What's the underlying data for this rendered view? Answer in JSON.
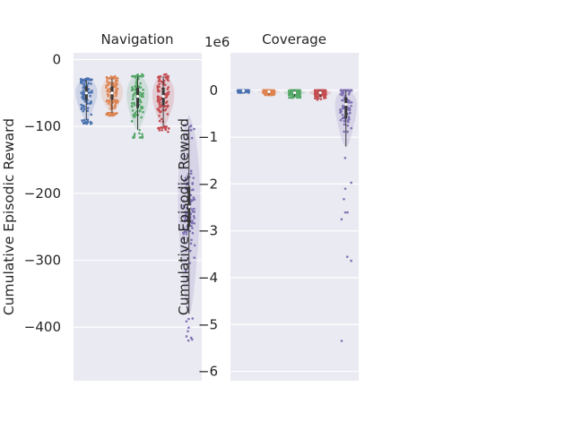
{
  "chart_data": [
    {
      "type": "violin-strip",
      "title": "Navigation",
      "ylabel": "Cumulative Episodic Reward",
      "xlabel": "",
      "ylim": [
        -480,
        10
      ],
      "yticks": [
        0,
        -100,
        -200,
        -300,
        -400
      ],
      "ytick_labels": [
        "0",
        "−100",
        "−200",
        "−300",
        "−400"
      ],
      "grid": true,
      "series": [
        {
          "color": "#4c72b0",
          "median": -50,
          "q1": -60,
          "q3": -40,
          "whisker_low": -90,
          "whisker_high": -30,
          "min": -96,
          "max": -28
        },
        {
          "color": "#dd8452",
          "median": -50,
          "q1": -60,
          "q3": -40,
          "whisker_low": -80,
          "whisker_high": -28,
          "min": -84,
          "max": -25
        },
        {
          "color": "#55a868",
          "median": -55,
          "q1": -72,
          "q3": -42,
          "whisker_low": -105,
          "whisker_high": -25,
          "min": -117,
          "max": -22
        },
        {
          "color": "#c44e52",
          "median": -55,
          "q1": -68,
          "q3": -42,
          "whisker_low": -100,
          "whisker_high": -25,
          "min": -108,
          "max": -22
        },
        {
          "color": "#8172b3",
          "median": -220,
          "q1": -250,
          "q3": -190,
          "whisker_low": -380,
          "whisker_high": -100,
          "min": -420,
          "max": -98
        }
      ]
    },
    {
      "type": "violin-strip",
      "title": "Coverage",
      "ylabel": "Cumulative Episodic Reward",
      "xlabel": "",
      "y_offset_label": "1e6",
      "ylim": [
        -6.2,
        0.8
      ],
      "yticks": [
        0,
        -1,
        -2,
        -3,
        -4,
        -5,
        -6
      ],
      "ytick_labels": [
        "0",
        "−1",
        "−2",
        "−3",
        "−4",
        "−5",
        "−6"
      ],
      "grid": true,
      "series": [
        {
          "color": "#4c72b0",
          "median": -0.01,
          "q1": -0.02,
          "q3": 0.0,
          "whisker_low": -0.04,
          "whisker_high": 0.0,
          "min": -0.05,
          "max": 0.0
        },
        {
          "color": "#dd8452",
          "median": -0.03,
          "q1": -0.05,
          "q3": -0.01,
          "whisker_low": -0.09,
          "whisker_high": 0.0,
          "min": -0.1,
          "max": 0.0
        },
        {
          "color": "#55a868",
          "median": -0.05,
          "q1": -0.08,
          "q3": -0.02,
          "whisker_low": -0.13,
          "whisker_high": 0.0,
          "min": -0.16,
          "max": 0.0
        },
        {
          "color": "#c44e52",
          "median": -0.05,
          "q1": -0.08,
          "q3": -0.02,
          "whisker_low": -0.15,
          "whisker_high": 0.0,
          "min": -0.2,
          "max": 0.0
        },
        {
          "color": "#8172b3",
          "median": -0.3,
          "q1": -0.6,
          "q3": -0.15,
          "whisker_low": -1.2,
          "whisker_high": 0.0,
          "min": -5.35,
          "max": 0.0
        }
      ]
    }
  ],
  "colors": {
    "background": "#eaeaf2",
    "grid": "#ffffff",
    "text": "#262626"
  }
}
